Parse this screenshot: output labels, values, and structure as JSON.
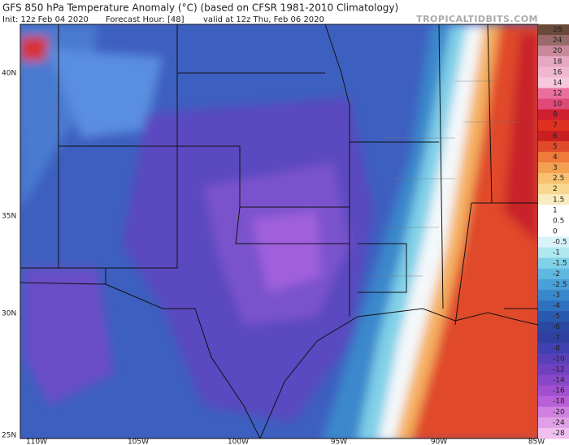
{
  "header": {
    "title": "GFS 850 hPa Temperature Anomaly (°C) (based on CFSR 1981-2010 Climatology)",
    "init": "Init: 12z Feb 04 2020",
    "forecast_hour": "Forecast Hour: [48]",
    "valid": "valid at 12z Thu, Feb 06 2020",
    "site": "TROPICALTIDBITS.COM"
  },
  "map": {
    "lat_labels": [
      "40N",
      "35N",
      "30N",
      "25N"
    ],
    "lon_labels": [
      "110W",
      "105W",
      "100W",
      "95W",
      "90W",
      "85W"
    ]
  },
  "colorbar": {
    "labels": [
      "28",
      "24",
      "20",
      "18",
      "16",
      "14",
      "12",
      "10",
      "8",
      "7",
      "6",
      "5",
      "4",
      "3",
      "2.5",
      "2",
      "1.5",
      "1",
      "0.5",
      "0",
      "-0.5",
      "-1",
      "-1.5",
      "-2",
      "-2.5",
      "-3",
      "-4",
      "-5",
      "-6",
      "-7",
      "-8",
      "-10",
      "-12",
      "-14",
      "-16",
      "-18",
      "-20",
      "-24",
      "-28"
    ]
  }
}
